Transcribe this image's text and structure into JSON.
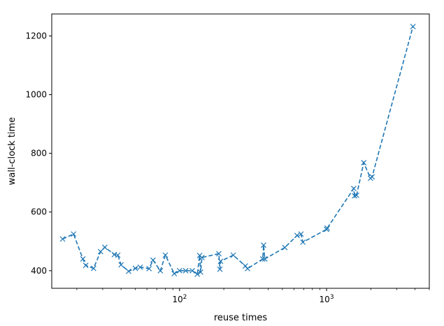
{
  "chart_data": {
    "type": "line",
    "title": "",
    "xlabel": "reuse times",
    "ylabel": "wall-clock time",
    "xscale": "log",
    "xlim": [
      13.5,
      5000
    ],
    "ylim": [
      340,
      1275
    ],
    "grid": false,
    "legend": "none",
    "line_style": "dashed",
    "marker": "x",
    "color": "#1f77b4",
    "x_ticks": [
      {
        "value": 100,
        "base": "10",
        "exp": "2"
      },
      {
        "value": 1000,
        "base": "10",
        "exp": "3"
      }
    ],
    "y_ticks": [
      400,
      600,
      800,
      1000,
      1200
    ],
    "series": [
      {
        "x": [
          16,
          19,
          22,
          23,
          26,
          29,
          31,
          36,
          38,
          40,
          45,
          50,
          54,
          62,
          66,
          74,
          80,
          92,
          100,
          110,
          122,
          132,
          137,
          139,
          142,
          185,
          188,
          190,
          232,
          280,
          290,
          368,
          373,
          380,
          520,
          630,
          670,
          690,
          1000,
          1010,
          1530,
          1550,
          1600,
          1790,
          1990,
          2040,
          3870
        ],
        "y": [
          508,
          525,
          440,
          418,
          408,
          465,
          480,
          455,
          453,
          420,
          398,
          408,
          412,
          407,
          436,
          400,
          453,
          390,
          400,
          400,
          400,
          388,
          452,
          395,
          445,
          458,
          405,
          432,
          453,
          416,
          407,
          440,
          487,
          440,
          479,
          520,
          525,
          497,
          541,
          545,
          680,
          655,
          657,
          768,
          715,
          720,
          1232
        ]
      }
    ]
  }
}
